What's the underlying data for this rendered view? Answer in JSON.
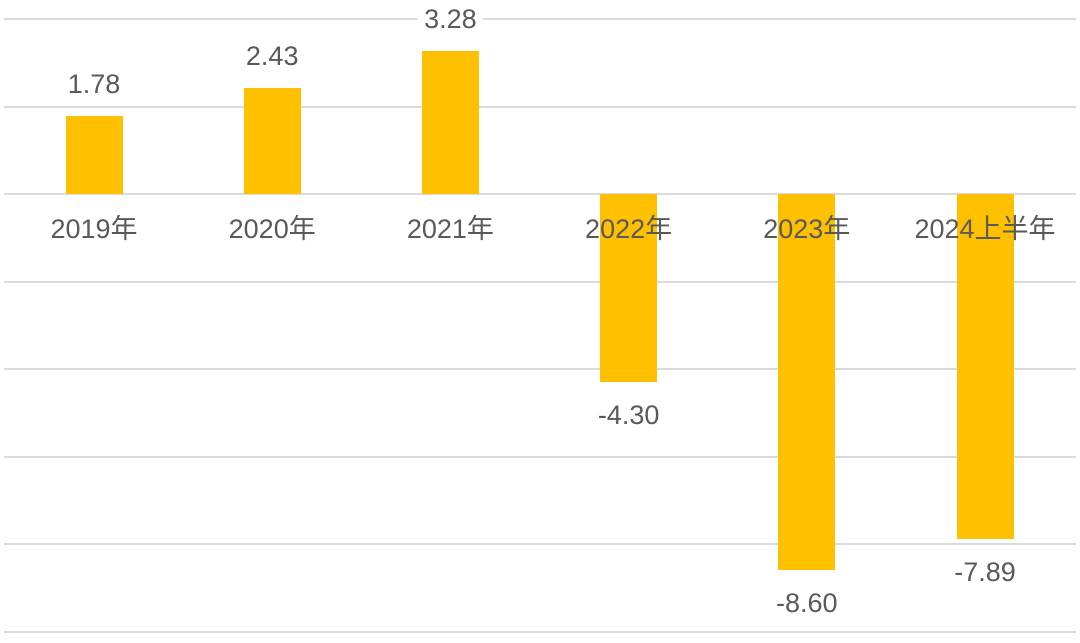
{
  "chart_data": {
    "type": "bar",
    "title": "",
    "xlabel": "",
    "ylabel": "",
    "categories": [
      "2019年",
      "2020年",
      "2021年",
      "2022年",
      "2023年",
      "2024上半年"
    ],
    "values": [
      1.78,
      2.43,
      3.28,
      -4.3,
      -8.6,
      -7.89
    ],
    "data_labels": [
      "1.78",
      "2.43",
      "3.28",
      "-4.30",
      "-8.60",
      "-7.89"
    ],
    "ylim": [
      -10.26,
      4.44
    ],
    "gridlines": [
      4,
      2,
      0,
      -2,
      -4,
      -6,
      -8,
      -10
    ],
    "grid": "on",
    "legend": "none",
    "colors": {
      "bar": "#FFC000",
      "label": "#595959",
      "gridline": "#DBDBDB",
      "background": "#FFFFFF"
    }
  }
}
